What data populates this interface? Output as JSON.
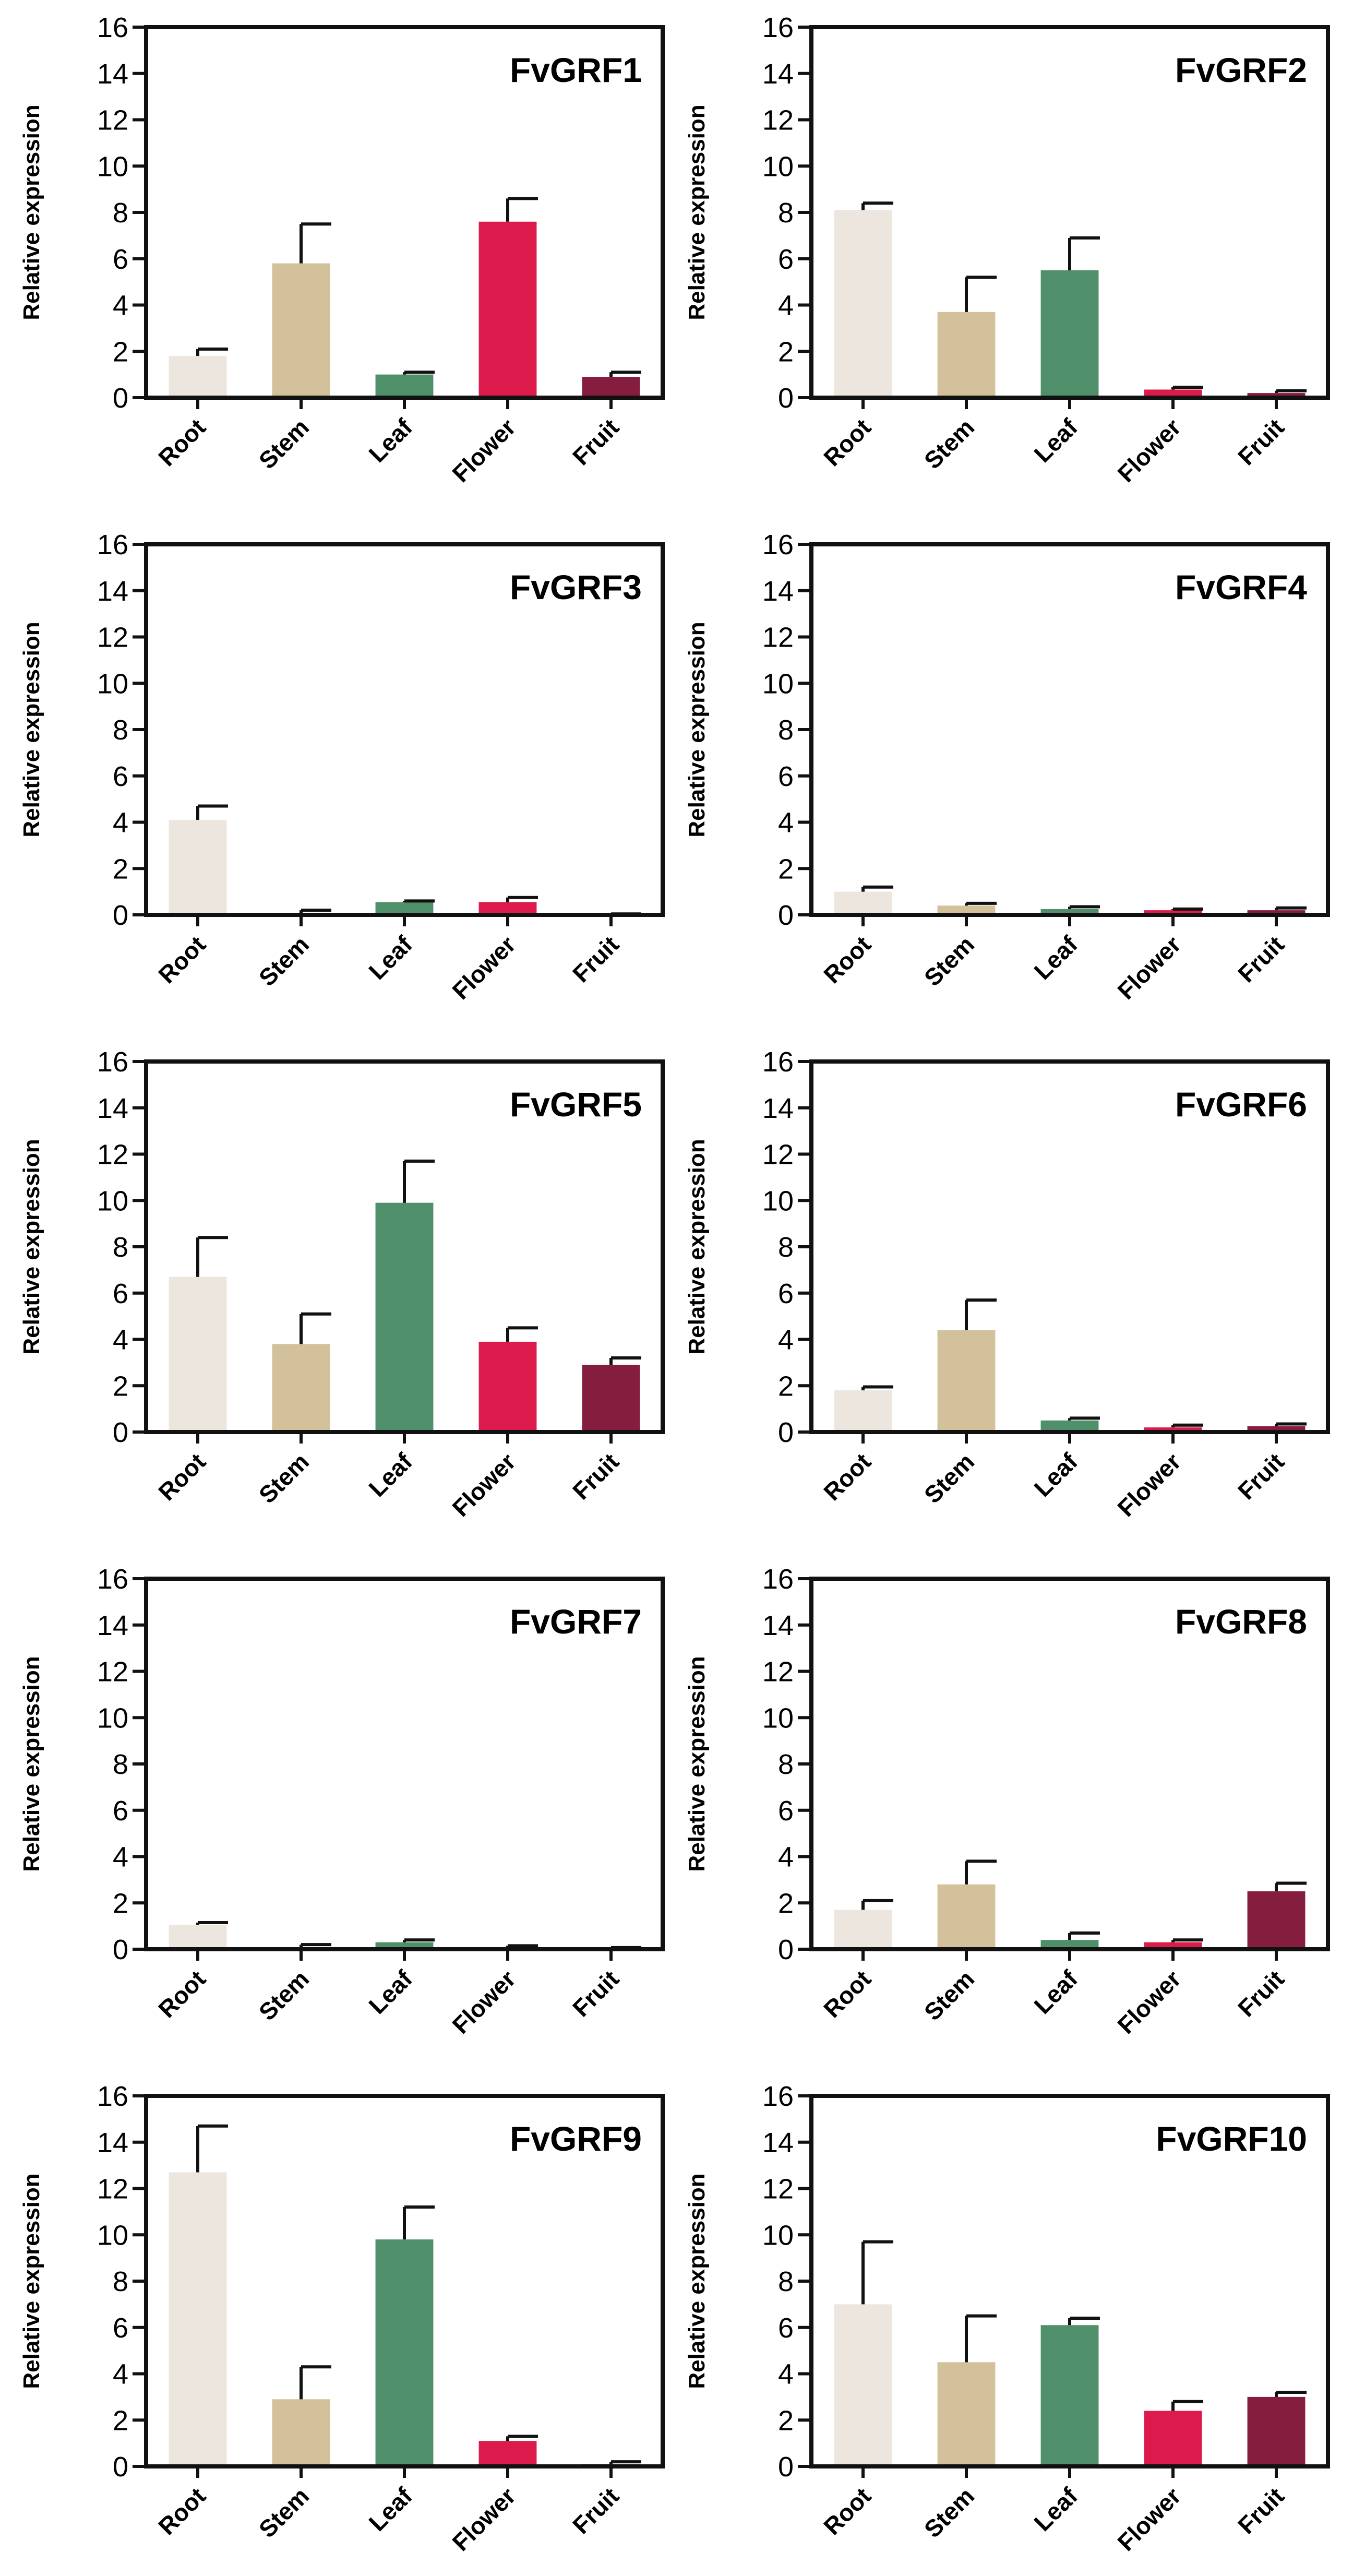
{
  "colors": {
    "Root": "#ede6df",
    "Stem": "#d2c19a",
    "Leaf": "#4f8f6a",
    "Flower": "#dc1a4b",
    "Fruit": "#851d3e",
    "axis": "#111111"
  },
  "chart_data": [
    {
      "type": "bar",
      "title": "FvGRF1",
      "ylabel": "Relative expression",
      "categories": [
        "Root",
        "Stem",
        "Leaf",
        "Flower",
        "Fruit"
      ],
      "values": [
        1.8,
        5.8,
        1.0,
        7.6,
        0.9
      ],
      "errors": [
        0.3,
        1.7,
        0.1,
        1.0,
        0.2
      ],
      "ylim": [
        0,
        16
      ],
      "yticks": [
        0,
        2,
        4,
        6,
        8,
        10,
        12,
        14,
        16
      ]
    },
    {
      "type": "bar",
      "title": "FvGRF2",
      "ylabel": "Relative expression",
      "categories": [
        "Root",
        "Stem",
        "Leaf",
        "Flower",
        "Fruit"
      ],
      "values": [
        8.1,
        3.7,
        5.5,
        0.35,
        0.2
      ],
      "errors": [
        0.3,
        1.5,
        1.4,
        0.1,
        0.1
      ],
      "ylim": [
        0,
        16
      ],
      "yticks": [
        0,
        2,
        4,
        6,
        8,
        10,
        12,
        14,
        16
      ]
    },
    {
      "type": "bar",
      "title": "FvGRF3",
      "ylabel": "Relative expression",
      "categories": [
        "Root",
        "Stem",
        "Leaf",
        "Flower",
        "Fruit"
      ],
      "values": [
        4.1,
        0.05,
        0.55,
        0.55,
        0.02
      ],
      "errors": [
        0.6,
        0.15,
        0.05,
        0.2,
        0.02
      ],
      "ylim": [
        0,
        16
      ],
      "yticks": [
        0,
        2,
        4,
        6,
        8,
        10,
        12,
        14,
        16
      ]
    },
    {
      "type": "bar",
      "title": "FvGRF4",
      "ylabel": "Relative expression",
      "categories": [
        "Root",
        "Stem",
        "Leaf",
        "Flower",
        "Fruit"
      ],
      "values": [
        1.0,
        0.4,
        0.25,
        0.2,
        0.2
      ],
      "errors": [
        0.2,
        0.1,
        0.1,
        0.05,
        0.1
      ],
      "ylim": [
        0,
        16
      ],
      "yticks": [
        0,
        2,
        4,
        6,
        8,
        10,
        12,
        14,
        16
      ]
    },
    {
      "type": "bar",
      "title": "FvGRF5",
      "ylabel": "Relative expression",
      "categories": [
        "Root",
        "Stem",
        "Leaf",
        "Flower",
        "Fruit"
      ],
      "values": [
        6.7,
        3.8,
        9.9,
        3.9,
        2.9
      ],
      "errors": [
        1.7,
        1.3,
        1.8,
        0.6,
        0.3
      ],
      "ylim": [
        0,
        16
      ],
      "yticks": [
        0,
        2,
        4,
        6,
        8,
        10,
        12,
        14,
        16
      ]
    },
    {
      "type": "bar",
      "title": "FvGRF6",
      "ylabel": "Relative expression",
      "categories": [
        "Root",
        "Stem",
        "Leaf",
        "Flower",
        "Fruit"
      ],
      "values": [
        1.8,
        4.4,
        0.5,
        0.2,
        0.25
      ],
      "errors": [
        0.15,
        1.3,
        0.1,
        0.1,
        0.1
      ],
      "ylim": [
        0,
        16
      ],
      "yticks": [
        0,
        2,
        4,
        6,
        8,
        10,
        12,
        14,
        16
      ]
    },
    {
      "type": "bar",
      "title": "FvGRF7",
      "ylabel": "Relative expression",
      "categories": [
        "Root",
        "Stem",
        "Leaf",
        "Flower",
        "Fruit"
      ],
      "values": [
        1.05,
        0.05,
        0.3,
        0.05,
        0.02
      ],
      "errors": [
        0.1,
        0.15,
        0.1,
        0.1,
        0.05
      ],
      "ylim": [
        0,
        16
      ],
      "yticks": [
        0,
        2,
        4,
        6,
        8,
        10,
        12,
        14,
        16
      ]
    },
    {
      "type": "bar",
      "title": "FvGRF8",
      "ylabel": "Relative expression",
      "categories": [
        "Root",
        "Stem",
        "Leaf",
        "Flower",
        "Fruit"
      ],
      "values": [
        1.7,
        2.8,
        0.4,
        0.3,
        2.5
      ],
      "errors": [
        0.4,
        1.0,
        0.3,
        0.1,
        0.35
      ],
      "ylim": [
        0,
        16
      ],
      "yticks": [
        0,
        2,
        4,
        6,
        8,
        10,
        12,
        14,
        16
      ]
    },
    {
      "type": "bar",
      "title": "FvGRF9",
      "ylabel": "Relative expression",
      "categories": [
        "Root",
        "Stem",
        "Leaf",
        "Flower",
        "Fruit"
      ],
      "values": [
        12.7,
        2.9,
        9.8,
        1.1,
        0.1
      ],
      "errors": [
        2.0,
        1.4,
        1.4,
        0.2,
        0.1
      ],
      "ylim": [
        0,
        16
      ],
      "yticks": [
        0,
        2,
        4,
        6,
        8,
        10,
        12,
        14,
        16
      ]
    },
    {
      "type": "bar",
      "title": "FvGRF10",
      "ylabel": "Relative expression",
      "categories": [
        "Root",
        "Stem",
        "Leaf",
        "Flower",
        "Fruit"
      ],
      "values": [
        7.0,
        4.5,
        6.1,
        2.4,
        3.0
      ],
      "errors": [
        2.7,
        2.0,
        0.3,
        0.4,
        0.2
      ],
      "ylim": [
        0,
        16
      ],
      "yticks": [
        0,
        2,
        4,
        6,
        8,
        10,
        12,
        14,
        16
      ]
    }
  ]
}
